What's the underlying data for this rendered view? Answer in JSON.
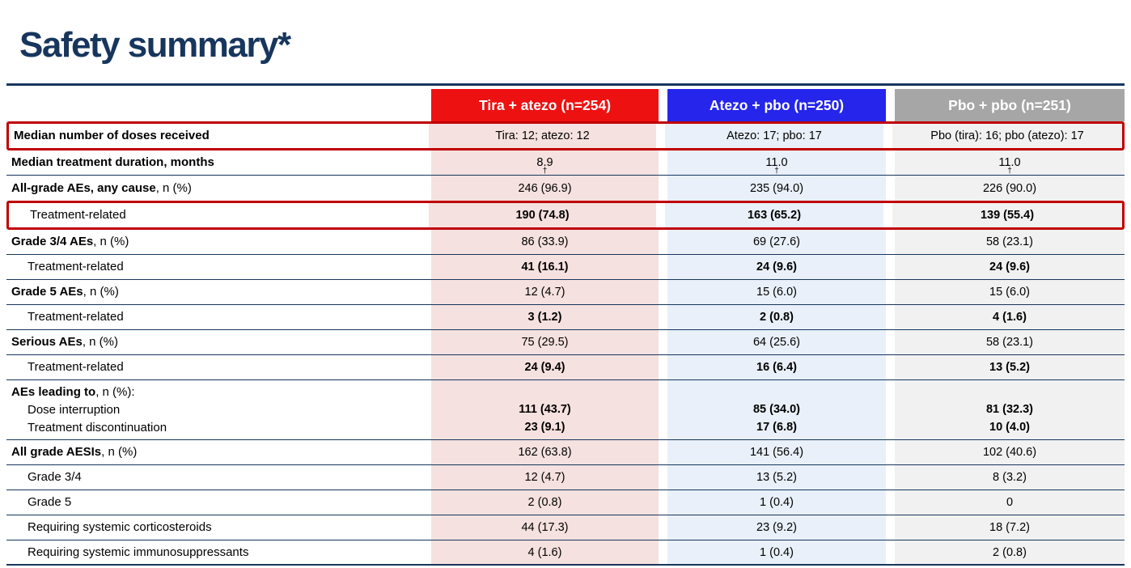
{
  "title": "Safety summary*",
  "colors": {
    "title_navy": "#17365d",
    "line_navy": "#17365d",
    "highlight_border_red": "#c00000",
    "header_red": "#ee1111",
    "header_blue": "#2525ec",
    "header_gray": "#a6a6a6",
    "column_pink": "#f5e1df",
    "column_light_blue": "#e9f0f9",
    "column_light_gray": "#f1f1f1"
  },
  "table": {
    "columns": [
      {
        "label": "Tira + atezo (n=254)",
        "header_bg": "#ee1111",
        "body_bg": "#f5e1df"
      },
      {
        "label": "Atezo + pbo (n=250)",
        "header_bg": "#2525ec",
        "body_bg": "#e9f0f9"
      },
      {
        "label": "Pbo + pbo (n=251)",
        "header_bg": "#a6a6a6",
        "body_bg": "#f1f1f1"
      }
    ],
    "rows": [
      {
        "label_bold": "Median number of doses received",
        "label_rest": "",
        "indent": 0,
        "highlight": true,
        "values_bold": false,
        "values": [
          "Tira: 12; atezo: 12",
          "Atezo: 17; pbo: 17",
          "Pbo (tira): 16; pbo (atezo): 17"
        ]
      },
      {
        "label_bold": "Median treatment duration, months",
        "label_rest": "",
        "indent": 0,
        "highlight": false,
        "values_bold": false,
        "values": [
          "8.9†",
          "11.0†",
          "11.0†"
        ]
      },
      {
        "label_bold": "All-grade AEs, any cause",
        "label_rest": ", n (%)",
        "indent": 0,
        "highlight": false,
        "values_bold": false,
        "values": [
          "246 (96.9)",
          "235 (94.0)",
          "226 (90.0)"
        ]
      },
      {
        "label_bold": "",
        "label_rest": "Treatment-related",
        "indent": 1,
        "highlight": true,
        "values_bold": true,
        "values": [
          "190 (74.8)",
          "163 (65.2)",
          "139 (55.4)"
        ]
      },
      {
        "label_bold": "Grade 3/4 AEs",
        "label_rest": ", n (%)",
        "indent": 0,
        "highlight": false,
        "values_bold": false,
        "values": [
          "86 (33.9)",
          "69 (27.6)",
          "58 (23.1)"
        ]
      },
      {
        "label_bold": "",
        "label_rest": "Treatment-related",
        "indent": 1,
        "highlight": false,
        "values_bold": true,
        "values": [
          "41 (16.1)",
          "24 (9.6)",
          "24 (9.6)"
        ]
      },
      {
        "label_bold": "Grade 5 AEs",
        "label_rest": ", n (%)",
        "indent": 0,
        "highlight": false,
        "values_bold": false,
        "values": [
          "12 (4.7)",
          "15 (6.0)",
          "15 (6.0)"
        ]
      },
      {
        "label_bold": "",
        "label_rest": "Treatment-related",
        "indent": 1,
        "highlight": false,
        "values_bold": true,
        "values": [
          "3 (1.2)",
          "2 (0.8)",
          "4 (1.6)"
        ]
      },
      {
        "label_bold": "Serious AEs",
        "label_rest": ", n (%)",
        "indent": 0,
        "highlight": false,
        "values_bold": false,
        "values": [
          "75 (29.5)",
          "64 (25.6)",
          "58 (23.1)"
        ]
      },
      {
        "label_bold": "",
        "label_rest": "Treatment-related",
        "indent": 1,
        "highlight": false,
        "values_bold": true,
        "values": [
          "24 (9.4)",
          "16 (6.4)",
          "13 (5.2)"
        ]
      },
      {
        "label_lines": [
          {
            "bold": "AEs leading to",
            "rest": ", n (%):",
            "indent": 0
          },
          {
            "bold": "",
            "rest": "Dose interruption",
            "indent": 1
          },
          {
            "bold": "",
            "rest": "Treatment discontinuation",
            "indent": 1
          }
        ],
        "highlight": false,
        "values_bold": true,
        "values": [
          [
            "111 (43.7)",
            "23 (9.1)"
          ],
          [
            "85 (34.0)",
            "17 (6.8)"
          ],
          [
            "81 (32.3)",
            "10 (4.0)"
          ]
        ]
      },
      {
        "label_bold": "All grade AESIs",
        "label_rest": ", n (%)",
        "indent": 0,
        "highlight": false,
        "values_bold": false,
        "values": [
          "162 (63.8)",
          "141 (56.4)",
          "102 (40.6)"
        ]
      },
      {
        "label_bold": "",
        "label_rest": "Grade 3/4",
        "indent": 1,
        "highlight": false,
        "values_bold": false,
        "values": [
          "12 (4.7)",
          "13 (5.2)",
          "8 (3.2)"
        ]
      },
      {
        "label_bold": "",
        "label_rest": "Grade 5",
        "indent": 1,
        "highlight": false,
        "values_bold": false,
        "values": [
          "2 (0.8)",
          "1 (0.4)",
          "0"
        ]
      },
      {
        "label_bold": "",
        "label_rest": "Requiring systemic corticosteroids",
        "indent": 1,
        "highlight": false,
        "values_bold": false,
        "values": [
          "44 (17.3)",
          "23 (9.2)",
          "18 (7.2)"
        ]
      },
      {
        "label_bold": "",
        "label_rest": "Requiring systemic immunosuppressants",
        "indent": 1,
        "highlight": false,
        "values_bold": false,
        "values": [
          "4 (1.6)",
          "1 (0.4)",
          "2 (0.8)"
        ]
      }
    ]
  }
}
